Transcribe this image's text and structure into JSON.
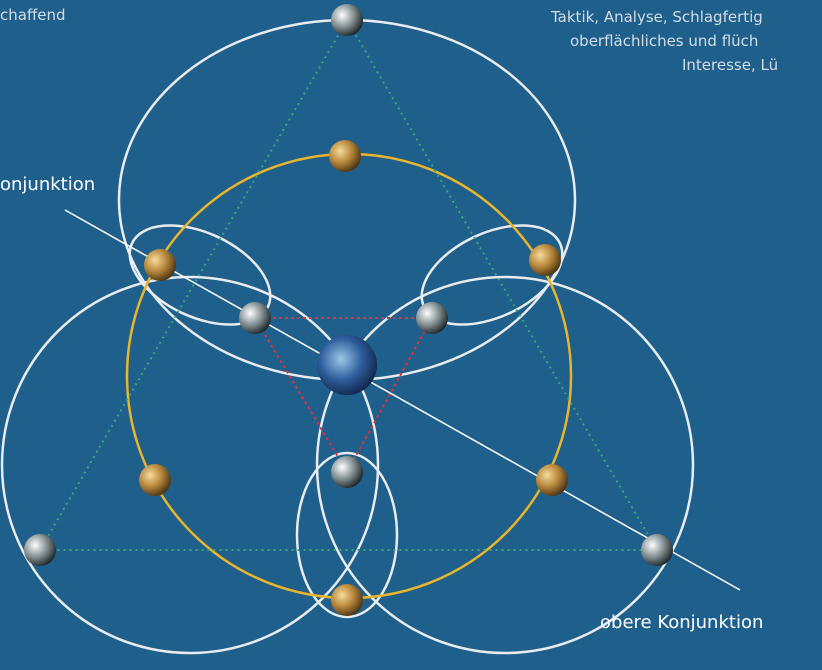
{
  "labels": {
    "top_left": "chaffend",
    "top_right": [
      "Taktik, Analyse, Schlagfertig",
      "oberflächliches und flüch",
      "Interesse, Lü"
    ],
    "left": "onjunktion",
    "bottom_right": "obere Konjunktion"
  }
}
